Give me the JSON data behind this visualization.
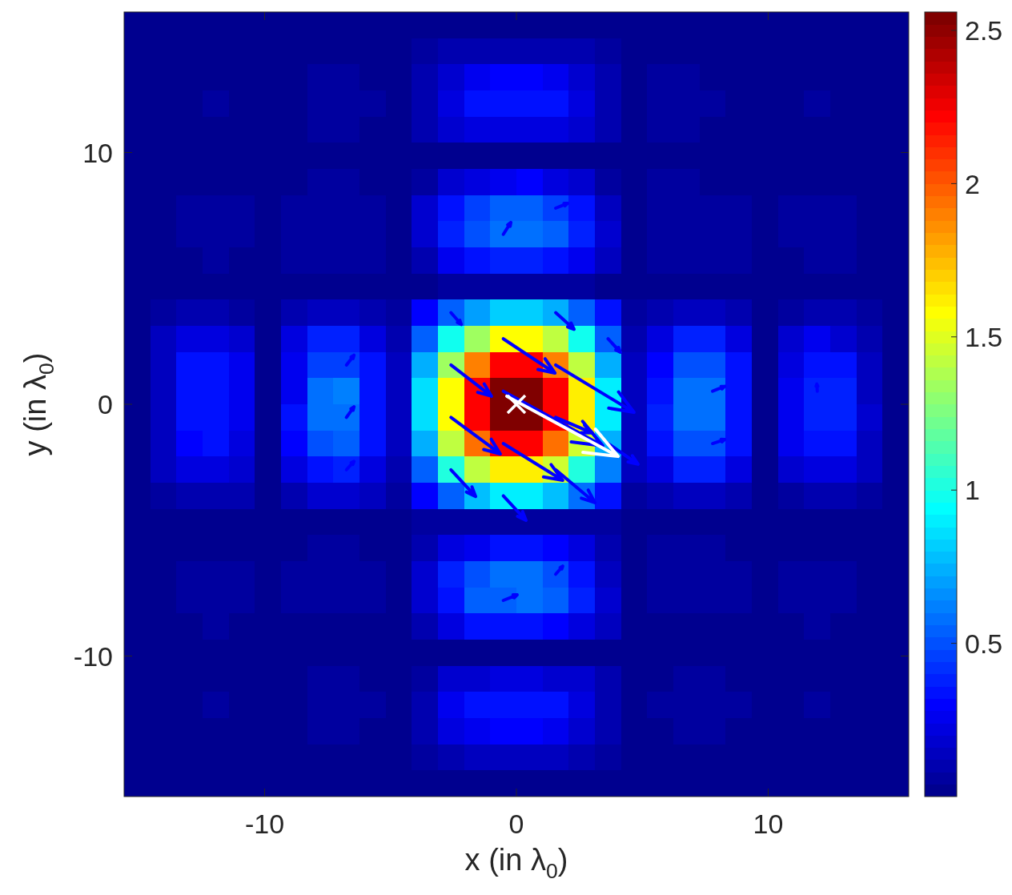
{
  "chart_data": {
    "type": "heatmap",
    "xlabel": "x (in λ$_{0}$)",
    "ylabel": "y (in λ$_{0}$)",
    "xlim": [
      -15.58,
      15.58
    ],
    "ylim": [
      -15.58,
      15.58
    ],
    "xticks": [
      -10,
      0,
      10
    ],
    "yticks": [
      -10,
      0,
      10
    ],
    "clim": [
      0,
      2.56
    ],
    "cticks": [
      0.5,
      1,
      1.5,
      2,
      2.5
    ],
    "cells": [
      [
        0.02,
        0.02,
        0.02,
        0.02,
        0.02,
        0.02,
        0.02,
        0.02,
        0.02,
        0.02,
        0.02,
        0.02,
        0.02,
        0.02,
        0.02,
        0.02,
        0.02,
        0.02,
        0.02,
        0.02,
        0.02,
        0.02,
        0.02,
        0.02,
        0.02,
        0.02,
        0.02,
        0.02,
        0.02,
        0.02
      ],
      [
        0.02,
        0.02,
        0.02,
        0.02,
        0.02,
        0.02,
        0.02,
        0.02,
        0.02,
        0.02,
        0.02,
        0.05,
        0.08,
        0.1,
        0.1,
        0.11,
        0.1,
        0.08,
        0.06,
        0.02,
        0.02,
        0.02,
        0.02,
        0.02,
        0.02,
        0.02,
        0.02,
        0.02,
        0.02,
        0.02
      ],
      [
        0.02,
        0.02,
        0.02,
        0.02,
        0.02,
        0.02,
        0.02,
        0.04,
        0.04,
        0.02,
        0.02,
        0.08,
        0.16,
        0.25,
        0.29,
        0.3,
        0.25,
        0.16,
        0.08,
        0.02,
        0.04,
        0.04,
        0.02,
        0.02,
        0.02,
        0.02,
        0.02,
        0.02,
        0.02,
        0.02
      ],
      [
        0.02,
        0.02,
        0.02,
        0.04,
        0.02,
        0.02,
        0.02,
        0.04,
        0.04,
        0.04,
        0.02,
        0.1,
        0.23,
        0.32,
        0.35,
        0.35,
        0.32,
        0.23,
        0.1,
        0.02,
        0.04,
        0.04,
        0.04,
        0.02,
        0.02,
        0.02,
        0.04,
        0.02,
        0.02,
        0.02
      ],
      [
        0.02,
        0.02,
        0.02,
        0.02,
        0.02,
        0.02,
        0.02,
        0.04,
        0.04,
        0.02,
        0.02,
        0.08,
        0.16,
        0.2,
        0.22,
        0.22,
        0.2,
        0.16,
        0.08,
        0.02,
        0.04,
        0.04,
        0.02,
        0.02,
        0.02,
        0.02,
        0.02,
        0.02,
        0.02,
        0.02
      ],
      [
        0.02,
        0.02,
        0.02,
        0.02,
        0.02,
        0.02,
        0.02,
        0.02,
        0.02,
        0.02,
        0.02,
        0.02,
        0.03,
        0.03,
        0.03,
        0.03,
        0.03,
        0.03,
        0.02,
        0.02,
        0.02,
        0.02,
        0.02,
        0.02,
        0.02,
        0.02,
        0.02,
        0.02,
        0.02,
        0.02
      ],
      [
        0.02,
        0.02,
        0.02,
        0.02,
        0.02,
        0.02,
        0.02,
        0.04,
        0.04,
        0.02,
        0.02,
        0.07,
        0.16,
        0.2,
        0.27,
        0.3,
        0.22,
        0.16,
        0.07,
        0.02,
        0.04,
        0.04,
        0.02,
        0.02,
        0.02,
        0.02,
        0.02,
        0.02,
        0.02,
        0.02
      ],
      [
        0.02,
        0.02,
        0.05,
        0.05,
        0.05,
        0.02,
        0.05,
        0.06,
        0.06,
        0.05,
        0.02,
        0.16,
        0.32,
        0.44,
        0.52,
        0.52,
        0.44,
        0.32,
        0.15,
        0.02,
        0.05,
        0.06,
        0.06,
        0.05,
        0.02,
        0.05,
        0.05,
        0.05,
        0.02,
        0.02
      ],
      [
        0.02,
        0.02,
        0.05,
        0.05,
        0.05,
        0.02,
        0.05,
        0.06,
        0.06,
        0.05,
        0.02,
        0.18,
        0.36,
        0.48,
        0.56,
        0.56,
        0.52,
        0.36,
        0.17,
        0.02,
        0.05,
        0.06,
        0.06,
        0.05,
        0.02,
        0.05,
        0.05,
        0.05,
        0.02,
        0.02
      ],
      [
        0.02,
        0.02,
        0.02,
        0.04,
        0.02,
        0.02,
        0.04,
        0.04,
        0.04,
        0.04,
        0.02,
        0.1,
        0.25,
        0.32,
        0.36,
        0.36,
        0.32,
        0.25,
        0.14,
        0.02,
        0.04,
        0.04,
        0.04,
        0.04,
        0.02,
        0.02,
        0.04,
        0.04,
        0.02,
        0.02
      ],
      [
        0.02,
        0.02,
        0.02,
        0.02,
        0.02,
        0.02,
        0.02,
        0.02,
        0.02,
        0.02,
        0.02,
        0.02,
        0.04,
        0.04,
        0.04,
        0.04,
        0.04,
        0.04,
        0.02,
        0.02,
        0.02,
        0.02,
        0.02,
        0.02,
        0.02,
        0.02,
        0.02,
        0.02,
        0.02,
        0.02
      ],
      [
        0.02,
        0.07,
        0.1,
        0.1,
        0.07,
        0.02,
        0.1,
        0.15,
        0.15,
        0.1,
        0.05,
        0.28,
        0.52,
        0.68,
        0.8,
        0.8,
        0.72,
        0.52,
        0.32,
        0.05,
        0.08,
        0.15,
        0.15,
        0.08,
        0.02,
        0.07,
        0.1,
        0.1,
        0.07,
        0.02
      ],
      [
        0.02,
        0.12,
        0.22,
        0.22,
        0.16,
        0.02,
        0.22,
        0.36,
        0.36,
        0.22,
        0.1,
        0.52,
        0.96,
        1.33,
        1.58,
        1.58,
        1.42,
        0.96,
        0.52,
        0.1,
        0.22,
        0.36,
        0.36,
        0.22,
        0.02,
        0.16,
        0.25,
        0.18,
        0.1,
        0.02
      ],
      [
        0.02,
        0.14,
        0.32,
        0.32,
        0.25,
        0.02,
        0.27,
        0.44,
        0.44,
        0.32,
        0.14,
        0.72,
        1.33,
        1.9,
        2.22,
        2.22,
        1.9,
        1.42,
        0.72,
        0.15,
        0.3,
        0.48,
        0.48,
        0.32,
        0.02,
        0.22,
        0.32,
        0.32,
        0.15,
        0.02
      ],
      [
        0.02,
        0.15,
        0.32,
        0.35,
        0.25,
        0.02,
        0.27,
        0.56,
        0.6,
        0.32,
        0.15,
        0.85,
        1.58,
        2.22,
        2.55,
        2.55,
        2.22,
        1.62,
        0.88,
        0.15,
        0.32,
        0.56,
        0.56,
        0.32,
        0.02,
        0.25,
        0.36,
        0.36,
        0.15,
        0.02
      ],
      [
        0.02,
        0.15,
        0.32,
        0.35,
        0.25,
        0.02,
        0.32,
        0.56,
        0.56,
        0.32,
        0.14,
        0.85,
        1.58,
        2.22,
        2.55,
        2.55,
        2.22,
        1.62,
        0.88,
        0.15,
        0.36,
        0.56,
        0.56,
        0.32,
        0.02,
        0.27,
        0.36,
        0.36,
        0.18,
        0.02
      ],
      [
        0.02,
        0.14,
        0.28,
        0.32,
        0.22,
        0.02,
        0.28,
        0.48,
        0.52,
        0.32,
        0.14,
        0.72,
        1.42,
        1.93,
        2.22,
        2.22,
        1.93,
        1.45,
        0.74,
        0.15,
        0.32,
        0.48,
        0.48,
        0.32,
        0.02,
        0.25,
        0.32,
        0.32,
        0.15,
        0.02
      ],
      [
        0.02,
        0.12,
        0.22,
        0.22,
        0.18,
        0.02,
        0.22,
        0.32,
        0.36,
        0.22,
        0.1,
        0.52,
        1.0,
        1.42,
        1.62,
        1.62,
        1.45,
        1.0,
        0.6,
        0.14,
        0.22,
        0.36,
        0.36,
        0.22,
        0.02,
        0.18,
        0.22,
        0.22,
        0.12,
        0.02
      ],
      [
        0.02,
        0.07,
        0.1,
        0.1,
        0.1,
        0.02,
        0.1,
        0.18,
        0.18,
        0.13,
        0.06,
        0.28,
        0.52,
        0.76,
        0.88,
        0.88,
        0.76,
        0.56,
        0.32,
        0.06,
        0.08,
        0.15,
        0.15,
        0.08,
        0.02,
        0.07,
        0.1,
        0.1,
        0.07,
        0.02
      ],
      [
        0.02,
        0.02,
        0.02,
        0.02,
        0.02,
        0.02,
        0.02,
        0.02,
        0.02,
        0.02,
        0.02,
        0.04,
        0.05,
        0.05,
        0.05,
        0.05,
        0.05,
        0.05,
        0.05,
        0.02,
        0.02,
        0.02,
        0.02,
        0.02,
        0.02,
        0.02,
        0.02,
        0.02,
        0.02,
        0.02
      ],
      [
        0.02,
        0.02,
        0.02,
        0.02,
        0.02,
        0.02,
        0.02,
        0.04,
        0.04,
        0.02,
        0.02,
        0.08,
        0.22,
        0.25,
        0.35,
        0.32,
        0.28,
        0.23,
        0.1,
        0.02,
        0.04,
        0.04,
        0.04,
        0.02,
        0.02,
        0.02,
        0.02,
        0.02,
        0.02,
        0.02
      ],
      [
        0.02,
        0.02,
        0.04,
        0.04,
        0.04,
        0.02,
        0.04,
        0.05,
        0.05,
        0.04,
        0.02,
        0.18,
        0.36,
        0.48,
        0.56,
        0.56,
        0.48,
        0.32,
        0.15,
        0.02,
        0.04,
        0.05,
        0.05,
        0.04,
        0.02,
        0.04,
        0.04,
        0.04,
        0.02,
        0.02
      ],
      [
        0.02,
        0.02,
        0.04,
        0.04,
        0.04,
        0.02,
        0.04,
        0.04,
        0.04,
        0.04,
        0.02,
        0.18,
        0.32,
        0.52,
        0.52,
        0.56,
        0.52,
        0.36,
        0.17,
        0.02,
        0.05,
        0.05,
        0.05,
        0.05,
        0.02,
        0.04,
        0.04,
        0.04,
        0.02,
        0.02
      ],
      [
        0.02,
        0.02,
        0.02,
        0.04,
        0.02,
        0.02,
        0.03,
        0.03,
        0.03,
        0.03,
        0.02,
        0.1,
        0.22,
        0.32,
        0.32,
        0.32,
        0.28,
        0.22,
        0.12,
        0.02,
        0.03,
        0.03,
        0.03,
        0.03,
        0.02,
        0.02,
        0.04,
        0.02,
        0.02,
        0.02
      ],
      [
        0.02,
        0.02,
        0.02,
        0.02,
        0.02,
        0.02,
        0.02,
        0.02,
        0.02,
        0.02,
        0.02,
        0.02,
        0.02,
        0.02,
        0.02,
        0.03,
        0.03,
        0.03,
        0.02,
        0.02,
        0.02,
        0.02,
        0.02,
        0.02,
        0.02,
        0.02,
        0.02,
        0.02,
        0.02,
        0.02
      ],
      [
        0.02,
        0.02,
        0.02,
        0.02,
        0.02,
        0.02,
        0.02,
        0.04,
        0.04,
        0.02,
        0.02,
        0.07,
        0.16,
        0.18,
        0.2,
        0.2,
        0.18,
        0.16,
        0.08,
        0.02,
        0.02,
        0.04,
        0.04,
        0.02,
        0.02,
        0.02,
        0.02,
        0.02,
        0.02,
        0.02
      ],
      [
        0.02,
        0.02,
        0.02,
        0.04,
        0.02,
        0.02,
        0.02,
        0.04,
        0.04,
        0.04,
        0.02,
        0.08,
        0.25,
        0.32,
        0.35,
        0.35,
        0.32,
        0.23,
        0.1,
        0.02,
        0.04,
        0.04,
        0.04,
        0.04,
        0.02,
        0.02,
        0.04,
        0.02,
        0.02,
        0.02
      ],
      [
        0.02,
        0.02,
        0.02,
        0.02,
        0.02,
        0.02,
        0.02,
        0.04,
        0.04,
        0.02,
        0.02,
        0.08,
        0.22,
        0.25,
        0.28,
        0.28,
        0.25,
        0.16,
        0.08,
        0.02,
        0.02,
        0.04,
        0.04,
        0.02,
        0.02,
        0.02,
        0.02,
        0.02,
        0.02,
        0.02
      ],
      [
        0.02,
        0.02,
        0.02,
        0.02,
        0.02,
        0.02,
        0.02,
        0.02,
        0.02,
        0.02,
        0.02,
        0.05,
        0.1,
        0.12,
        0.14,
        0.14,
        0.12,
        0.1,
        0.07,
        0.02,
        0.02,
        0.02,
        0.02,
        0.02,
        0.02,
        0.02,
        0.02,
        0.02,
        0.02,
        0.02
      ],
      [
        0.02,
        0.02,
        0.02,
        0.02,
        0.02,
        0.02,
        0.02,
        0.02,
        0.02,
        0.02,
        0.02,
        0.02,
        0.02,
        0.02,
        0.02,
        0.02,
        0.02,
        0.02,
        0.02,
        0.02,
        0.02,
        0.02,
        0.02,
        0.02,
        0.02,
        0.02,
        0.02,
        0.02,
        0.02,
        0.02
      ]
    ],
    "series": [
      {
        "type": "scatter",
        "color": "#ffffff",
        "marker": "cross",
        "x": [
          0
        ],
        "values": [
          0
        ]
      }
    ]
  }
}
